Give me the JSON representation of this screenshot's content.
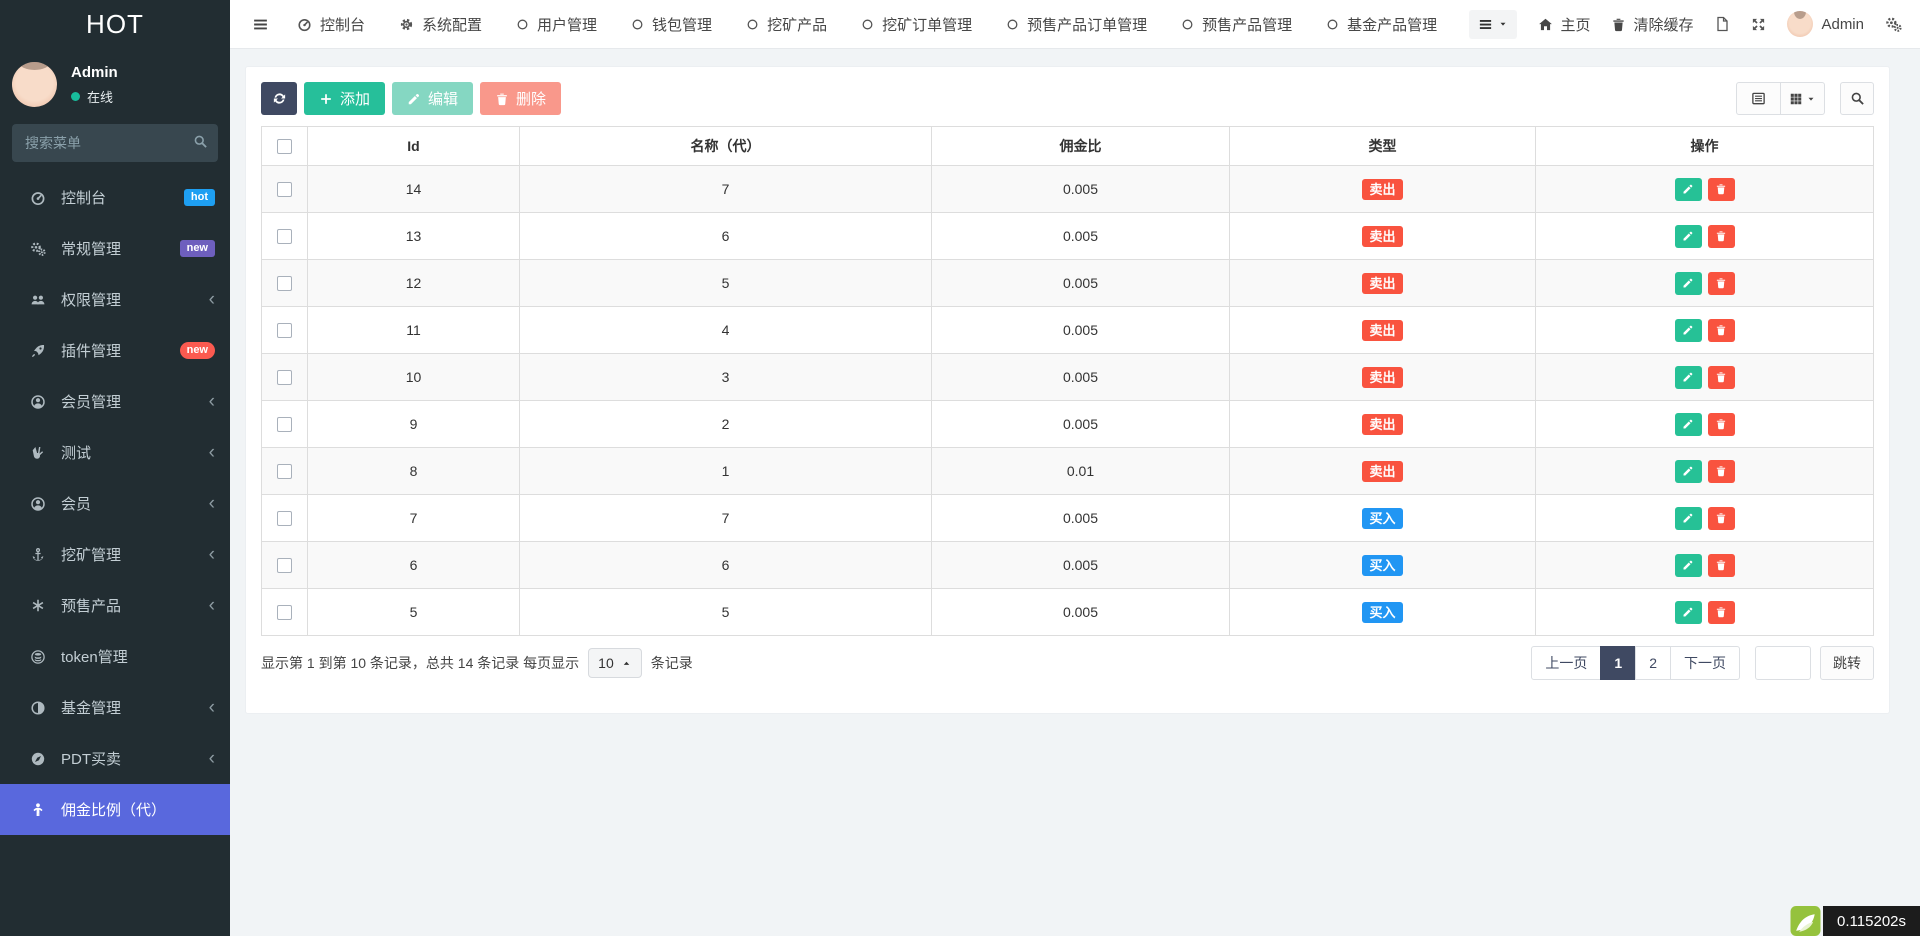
{
  "sidebar": {
    "logo": "HOT",
    "user": {
      "name": "Admin",
      "status": "在线"
    },
    "search_placeholder": "搜索菜单",
    "items": [
      {
        "label": "控制台",
        "icon": "tachometer-icon",
        "badge": {
          "text": "hot",
          "style": "blue"
        }
      },
      {
        "label": "常规管理",
        "icon": "cogs-icon",
        "badge": {
          "text": "new",
          "style": "purple"
        }
      },
      {
        "label": "权限管理",
        "icon": "users-icon",
        "chevron": true
      },
      {
        "label": "插件管理",
        "icon": "rocket-icon",
        "badge": {
          "text": "new",
          "style": "red"
        }
      },
      {
        "label": "会员管理",
        "icon": "user-circle-icon",
        "chevron": true
      },
      {
        "label": "测试",
        "icon": "peace-icon",
        "chevron": true
      },
      {
        "label": "会员",
        "icon": "user-circle-icon",
        "chevron": true
      },
      {
        "label": "挖矿管理",
        "icon": "anchor-icon",
        "chevron": true
      },
      {
        "label": "预售产品",
        "icon": "asterisk-icon",
        "chevron": true
      },
      {
        "label": "token管理",
        "icon": "token-icon",
        "chevron": false
      },
      {
        "label": "基金管理",
        "icon": "adjust-icon",
        "chevron": true
      },
      {
        "label": "PDT买卖",
        "icon": "compass-icon",
        "chevron": true
      },
      {
        "label": "佣金比例（代）",
        "icon": "child-icon",
        "active": true
      }
    ]
  },
  "topnav": {
    "tabs": [
      {
        "label": "控制台",
        "icon": "tachometer-icon"
      },
      {
        "label": "系统配置",
        "icon": "gear-icon"
      },
      {
        "label": "用户管理",
        "icon": "circle-icon"
      },
      {
        "label": "钱包管理",
        "icon": "circle-icon"
      },
      {
        "label": "挖矿产品",
        "icon": "circle-icon"
      },
      {
        "label": "挖矿订单管理",
        "icon": "circle-icon"
      },
      {
        "label": "预售产品订单管理",
        "icon": "circle-icon"
      },
      {
        "label": "预售产品管理",
        "icon": "circle-icon"
      },
      {
        "label": "基金产品管理",
        "icon": "circle-icon"
      }
    ],
    "right": {
      "home": "主页",
      "clear_cache": "清除缓存",
      "username": "Admin"
    }
  },
  "toolbar": {
    "add": "添加",
    "edit": "编辑",
    "delete": "删除"
  },
  "table": {
    "columns": [
      "Id",
      "名称（代）",
      "佣金比",
      "类型",
      "操作"
    ],
    "rows": [
      {
        "id": "14",
        "name": "7",
        "rate": "0.005",
        "type": "卖出",
        "type_style": "sell"
      },
      {
        "id": "13",
        "name": "6",
        "rate": "0.005",
        "type": "卖出",
        "type_style": "sell"
      },
      {
        "id": "12",
        "name": "5",
        "rate": "0.005",
        "type": "卖出",
        "type_style": "sell"
      },
      {
        "id": "11",
        "name": "4",
        "rate": "0.005",
        "type": "卖出",
        "type_style": "sell"
      },
      {
        "id": "10",
        "name": "3",
        "rate": "0.005",
        "type": "卖出",
        "type_style": "sell"
      },
      {
        "id": "9",
        "name": "2",
        "rate": "0.005",
        "type": "卖出",
        "type_style": "sell"
      },
      {
        "id": "8",
        "name": "1",
        "rate": "0.01",
        "type": "卖出",
        "type_style": "sell"
      },
      {
        "id": "7",
        "name": "7",
        "rate": "0.005",
        "type": "买入",
        "type_style": "buy"
      },
      {
        "id": "6",
        "name": "6",
        "rate": "0.005",
        "type": "买入",
        "type_style": "buy"
      },
      {
        "id": "5",
        "name": "5",
        "rate": "0.005",
        "type": "买入",
        "type_style": "buy"
      }
    ]
  },
  "pagination": {
    "info_before": "显示第 1 到第 10 条记录，总共 14 条记录 每页显示",
    "page_size": "10",
    "info_after": "条记录",
    "prev": "上一页",
    "pages": [
      "1",
      "2"
    ],
    "active_page": "1",
    "next": "下一页",
    "jump": "跳转"
  },
  "trace": {
    "time": "0.115202s"
  },
  "colors": {
    "sidebar_bg": "#222d32",
    "active_item": "#5968dd",
    "success": "#26bf9a",
    "danger": "#f9533f",
    "buy_badge": "#2196f3",
    "dark_button": "#3f4962",
    "badge_hot": "#1e9ff2",
    "badge_new_purple": "#6e5fbe",
    "badge_new_red": "#fb5a50",
    "trace_green": "#95c23d"
  }
}
